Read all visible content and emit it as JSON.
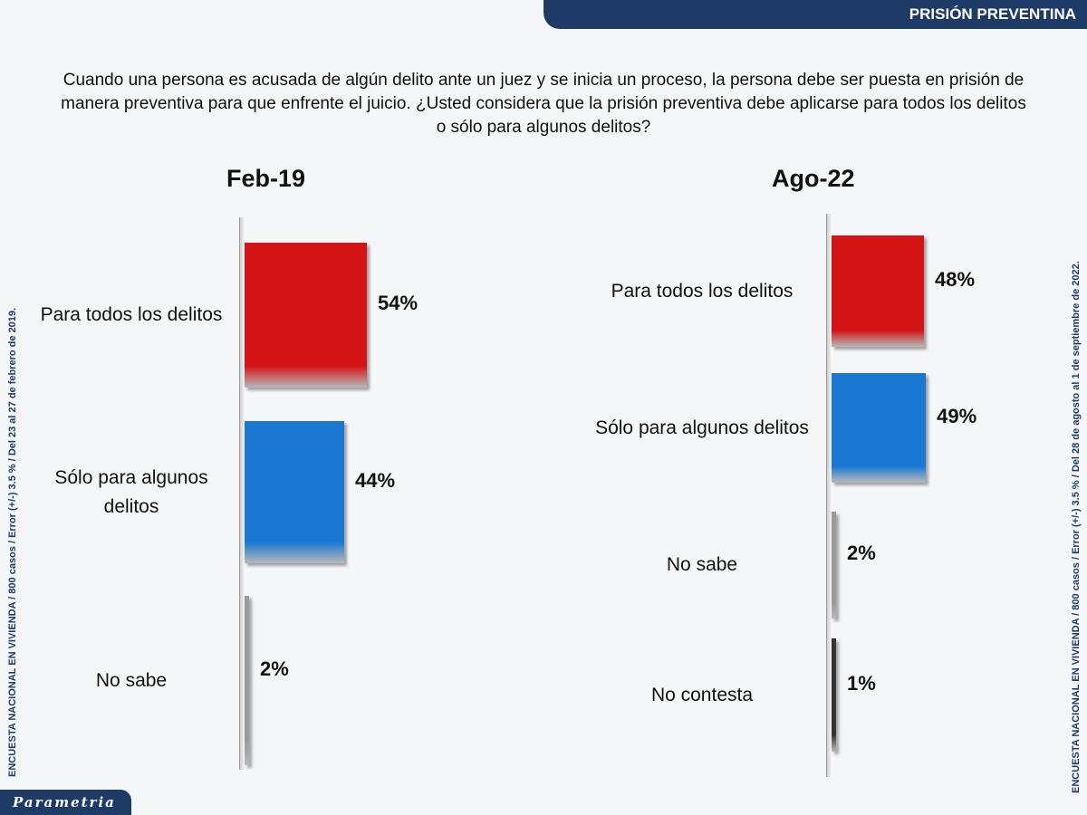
{
  "header": {
    "title": "PRISIÓN PREVENTINA"
  },
  "question": "Cuando una persona es acusada de algún delito ante un juez y se inicia un proceso, la persona debe ser puesta en prisión de manera preventiva para que enfrente el juicio. ¿Usted considera que la prisión preventiva debe aplicarse para todos los delitos o sólo para algunos delitos?",
  "side_left": "ENCUESTA NACIONAL EN VIVIENDA / 800 casos / Error (+/-) 3.5 % / Del 23 al 27 de febrero de 2019.",
  "side_right": "ENCUESTA NACIONAL EN VIVIENDA / 800 casos / Error (+/-) 3.5 % / Del 28 de agosto al 1 de septiembre de 2022.",
  "logo": "Parametria",
  "chart_data": [
    {
      "type": "bar",
      "orientation": "horizontal",
      "title": "Feb-19",
      "categories": [
        "Para todos los delitos",
        "Sólo para algunos delitos",
        "No sabe"
      ],
      "values": [
        54,
        44,
        2
      ],
      "labels": [
        "54%",
        "44%",
        "2%"
      ],
      "colors": [
        "#d41414",
        "#1a78d2",
        "#9a9a9a"
      ]
    },
    {
      "type": "bar",
      "orientation": "horizontal",
      "title": "Ago-22",
      "categories": [
        "Para todos los delitos",
        "Sólo para algunos delitos",
        "No sabe",
        "No contesta"
      ],
      "values": [
        48,
        49,
        2,
        1
      ],
      "labels": [
        "48%",
        "49%",
        "2%",
        "1%"
      ],
      "colors": [
        "#d41414",
        "#1a78d2",
        "#9a9a9a",
        "#333333"
      ]
    }
  ]
}
